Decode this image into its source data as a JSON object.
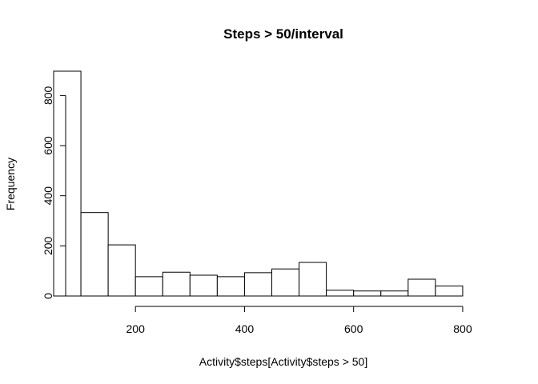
{
  "chart_data": {
    "type": "bar",
    "title": "Steps > 50/interval",
    "xlabel": "Activity$steps[Activity$steps > 50]",
    "ylabel": "Frequency",
    "bin_edges": [
      50,
      100,
      150,
      200,
      250,
      300,
      350,
      400,
      450,
      500,
      550,
      600,
      650,
      700,
      750,
      800
    ],
    "values": [
      897,
      333,
      204,
      77,
      95,
      83,
      77,
      93,
      108,
      134,
      23,
      20,
      20,
      67,
      40
    ],
    "xticks": [
      200,
      400,
      600,
      800
    ],
    "yticks": [
      0,
      200,
      400,
      600,
      800
    ],
    "xlim": [
      50,
      850
    ],
    "ylim": [
      0,
      897
    ],
    "grid": false
  }
}
